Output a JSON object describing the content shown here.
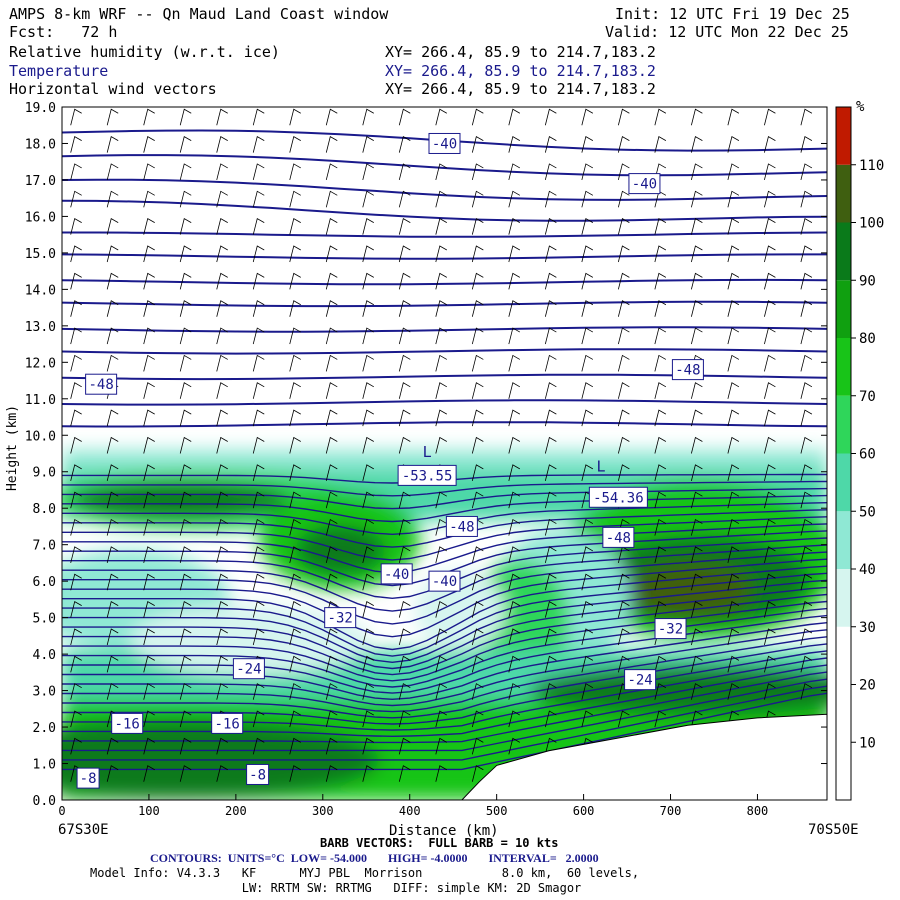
{
  "header": {
    "title": "AMPS 8-km WRF -- Qn Maud Land Coast window",
    "forecast": "Fcst:   72 h",
    "init": "Init: 12 UTC Fri 19 Dec 25",
    "valid": "Valid: 12 UTC Mon 22 Dec 25",
    "fields": [
      {
        "name": "Relative humidity (w.r.t. ice)",
        "xy": "XY= 266.4, 85.9 to 214.7,183.2"
      },
      {
        "name": "Temperature",
        "xy": "XY= 266.4, 85.9 to 214.7,183.2"
      },
      {
        "name": "Horizontal wind vectors",
        "xy": "XY= 266.4, 85.9 to 214.7,183.2"
      }
    ]
  },
  "colors": {
    "contour": "#1a1a8c",
    "rh_scale": [
      "#ffffff",
      "#ffffff",
      "#ffffff",
      "#d6f5ef",
      "#8fe8d4",
      "#4ed8a8",
      "#2fd65a",
      "#18c418",
      "#10a010",
      "#0a7a1a",
      "#3f5f10",
      "#c01a00"
    ]
  },
  "chart_data": {
    "type": "heatmap",
    "xlabel": "Distance (km)",
    "ylabel": "Height (km)",
    "xlim": [
      0,
      880
    ],
    "ylim": [
      0,
      19
    ],
    "x_ticks": [
      0,
      100,
      200,
      300,
      400,
      500,
      600,
      700,
      800
    ],
    "y_ticks": [
      "0.0",
      "1.0",
      "2.0",
      "3.0",
      "4.0",
      "5.0",
      "6.0",
      "7.0",
      "8.0",
      "9.0",
      "10.0",
      "11.0",
      "12.0",
      "13.0",
      "14.0",
      "15.0",
      "16.0",
      "17.0",
      "18.0",
      "19.0"
    ],
    "left_endpoint": "67S30E",
    "right_endpoint": "70S50E",
    "colorbar": {
      "unit": "%",
      "ticks": [
        "10",
        "20",
        "30",
        "40",
        "50",
        "60",
        "70",
        "80",
        "90",
        "100",
        "110"
      ]
    },
    "contour_labels": [
      {
        "text": "-40",
        "x": 440,
        "y": 18.0
      },
      {
        "text": "-40",
        "x": 670,
        "y": 16.9
      },
      {
        "text": "-48",
        "x": 45,
        "y": 11.4
      },
      {
        "text": "-48",
        "x": 720,
        "y": 11.8
      },
      {
        "text": "-53.55",
        "x": 420,
        "y": 8.9
      },
      {
        "text": "-54.36",
        "x": 640,
        "y": 8.3
      },
      {
        "text": "-48",
        "x": 460,
        "y": 7.5
      },
      {
        "text": "-48",
        "x": 640,
        "y": 7.2
      },
      {
        "text": "-40",
        "x": 385,
        "y": 6.2
      },
      {
        "text": "-40",
        "x": 440,
        "y": 6.0
      },
      {
        "text": "-32",
        "x": 320,
        "y": 5.0
      },
      {
        "text": "-32",
        "x": 700,
        "y": 4.7
      },
      {
        "text": "-24",
        "x": 215,
        "y": 3.6
      },
      {
        "text": "-24",
        "x": 665,
        "y": 3.3
      },
      {
        "text": "-16",
        "x": 75,
        "y": 2.1
      },
      {
        "text": "-16",
        "x": 190,
        "y": 2.1
      },
      {
        "text": "-8",
        "x": 30,
        "y": 0.6
      },
      {
        "text": "-8",
        "x": 225,
        "y": 0.7
      }
    ],
    "extrema": [
      {
        "text": "L",
        "x": 420,
        "y": 9.4
      },
      {
        "text": "L",
        "x": 620,
        "y": 9.0
      }
    ],
    "terrain": [
      [
        0,
        0
      ],
      [
        460,
        0
      ],
      [
        480,
        0.5
      ],
      [
        500,
        0.95
      ],
      [
        560,
        1.35
      ],
      [
        640,
        1.7
      ],
      [
        720,
        2.05
      ],
      [
        800,
        2.25
      ],
      [
        880,
        2.35
      ]
    ]
  },
  "footer": {
    "barbs": "BARB VECTORS:  FULL BARB = 10 kts",
    "contours": "CONTOURS:  UNITS=°C  LOW= -54.000       HIGH= -4.0000       INTERVAL=   2.0000",
    "model_info": "Model Info: V4.3.3   KF      MYJ PBL  Morrison           8.0 km,  60 levels,",
    "physics": "                     LW: RRTM SW: RRTMG   DIFF: simple KM: 2D Smagor"
  }
}
